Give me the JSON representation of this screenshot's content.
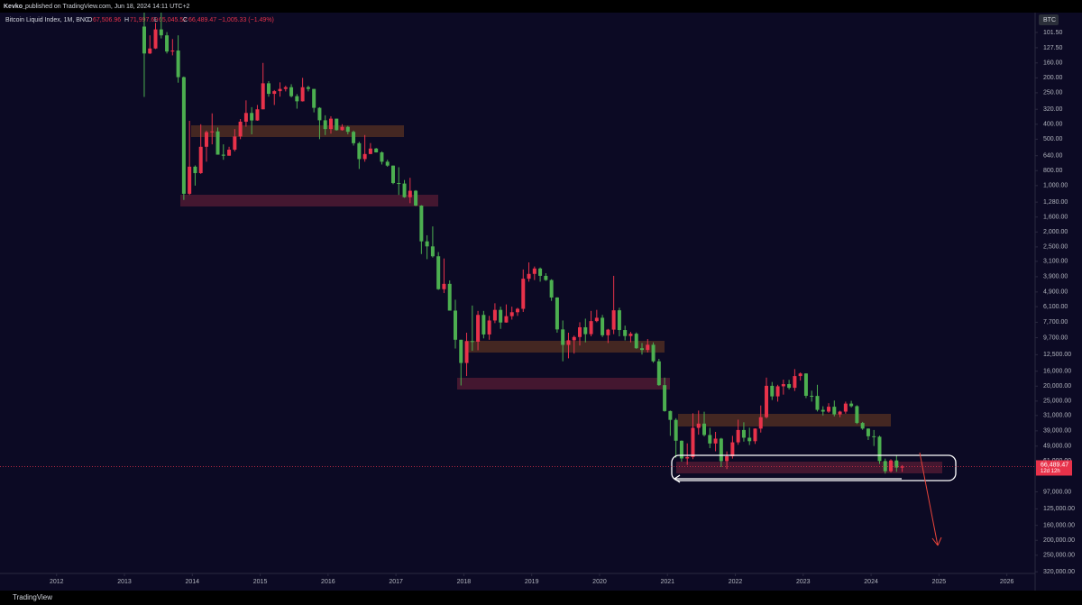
{
  "header": {
    "author": "Kevko_",
    "published": "published on TradingView.com, Jun 18, 2024 14:11 UTC+2"
  },
  "legend": {
    "o_label": "O",
    "o": "67,506.96",
    "h_label": "H",
    "h": "71,997.69",
    "l_label": "L",
    "l": "65,045.52",
    "c_label": "C",
    "c": "66,489.47",
    "change": "−1,005.33 (−1.49%)"
  },
  "symbol": "BTC",
  "price_tag": "66,489.47",
  "countdown": "12d 12h",
  "footer": "TradingView",
  "chart_data": {
    "type": "candlestick",
    "title": "Bitcoin Liquid Index, 1M, BNC",
    "log_scale": true,
    "inverted": true,
    "grid": false,
    "up_color": "#4caf50",
    "down_color": "#e8324a",
    "xlim": [
      "2011-03",
      "2026-06"
    ],
    "xticks": [
      2012,
      2013,
      2014,
      2015,
      2016,
      2017,
      2018,
      2019,
      2020,
      2021,
      2022,
      2023,
      2024,
      2025,
      2026
    ],
    "ylim": [
      75.5,
      407000
    ],
    "yticks": [
      {
        "value": 101.5,
        "label": "101.50"
      },
      {
        "value": 127.5,
        "label": "127.50"
      },
      {
        "value": 160,
        "label": "160.00"
      },
      {
        "value": 200,
        "label": "200.00"
      },
      {
        "value": 250,
        "label": "250.00"
      },
      {
        "value": 320,
        "label": "320.00"
      },
      {
        "value": 400,
        "label": "400.00"
      },
      {
        "value": 500,
        "label": "500.00"
      },
      {
        "value": 640,
        "label": "640.00"
      },
      {
        "value": 800,
        "label": "800.00"
      },
      {
        "value": 1000,
        "label": "1,000.00"
      },
      {
        "value": 1280,
        "label": "1,280.00"
      },
      {
        "value": 1600,
        "label": "1,600.00"
      },
      {
        "value": 2000,
        "label": "2,000.00"
      },
      {
        "value": 2500,
        "label": "2,500.00"
      },
      {
        "value": 3100,
        "label": "3,100.00"
      },
      {
        "value": 3900,
        "label": "3,900.00"
      },
      {
        "value": 4900,
        "label": "4,900.00"
      },
      {
        "value": 6100,
        "label": "6,100.00"
      },
      {
        "value": 7700,
        "label": "7,700.00"
      },
      {
        "value": 9700,
        "label": "9,700.00"
      },
      {
        "value": 12500,
        "label": "12,500.00"
      },
      {
        "value": 16000,
        "label": "16,000.00"
      },
      {
        "value": 20000,
        "label": "20,000.00"
      },
      {
        "value": 25000,
        "label": "25,000.00"
      },
      {
        "value": 31000,
        "label": "31,000.00"
      },
      {
        "value": 39000,
        "label": "39,000.00"
      },
      {
        "value": 49000,
        "label": "49,000.00"
      },
      {
        "value": 61000,
        "label": "61,000.00"
      },
      {
        "value": 97000,
        "label": "97,000.00"
      },
      {
        "value": 125000,
        "label": "125,000.00"
      },
      {
        "value": 160000,
        "label": "160,000.00"
      },
      {
        "value": 200000,
        "label": "200,000.00"
      },
      {
        "value": 250000,
        "label": "250,000.00"
      },
      {
        "value": 320000,
        "label": "320,000.00"
      }
    ],
    "x": [
      "2013-04",
      "2013-05",
      "2013-06",
      "2013-07",
      "2013-08",
      "2013-09",
      "2013-10",
      "2013-11",
      "2013-12",
      "2014-01",
      "2014-02",
      "2014-03",
      "2014-04",
      "2014-05",
      "2014-06",
      "2014-07",
      "2014-08",
      "2014-09",
      "2014-10",
      "2014-11",
      "2014-12",
      "2015-01",
      "2015-02",
      "2015-03",
      "2015-04",
      "2015-05",
      "2015-06",
      "2015-07",
      "2015-08",
      "2015-09",
      "2015-10",
      "2015-11",
      "2015-12",
      "2016-01",
      "2016-02",
      "2016-03",
      "2016-04",
      "2016-05",
      "2016-06",
      "2016-07",
      "2016-08",
      "2016-09",
      "2016-10",
      "2016-11",
      "2016-12",
      "2017-01",
      "2017-02",
      "2017-03",
      "2017-04",
      "2017-05",
      "2017-06",
      "2017-07",
      "2017-08",
      "2017-09",
      "2017-10",
      "2017-11",
      "2017-12",
      "2018-01",
      "2018-02",
      "2018-03",
      "2018-04",
      "2018-05",
      "2018-06",
      "2018-07",
      "2018-08",
      "2018-09",
      "2018-10",
      "2018-11",
      "2018-12",
      "2019-01",
      "2019-02",
      "2019-03",
      "2019-04",
      "2019-05",
      "2019-06",
      "2019-07",
      "2019-08",
      "2019-09",
      "2019-10",
      "2019-11",
      "2019-12",
      "2020-01",
      "2020-02",
      "2020-03",
      "2020-04",
      "2020-05",
      "2020-06",
      "2020-07",
      "2020-08",
      "2020-09",
      "2020-10",
      "2020-11",
      "2020-12",
      "2021-01",
      "2021-02",
      "2021-03",
      "2021-04",
      "2021-05",
      "2021-06",
      "2021-07",
      "2021-08",
      "2021-09",
      "2021-10",
      "2021-11",
      "2021-12",
      "2022-01",
      "2022-02",
      "2022-03",
      "2022-04",
      "2022-05",
      "2022-06",
      "2022-07",
      "2022-08",
      "2022-09",
      "2022-10",
      "2022-11",
      "2022-12",
      "2023-01",
      "2023-02",
      "2023-03",
      "2023-04",
      "2023-05",
      "2023-06",
      "2023-07",
      "2023-08",
      "2023-09",
      "2023-10",
      "2023-11",
      "2023-12",
      "2024-01",
      "2024-02",
      "2024-03",
      "2024-04",
      "2024-05",
      "2024-06"
    ],
    "candles": [
      [
        93,
        266,
        50,
        139
      ],
      [
        139,
        140,
        106,
        129
      ],
      [
        129,
        130,
        88,
        97
      ],
      [
        97,
        111,
        65,
        106
      ],
      [
        106,
        139,
        101,
        135
      ],
      [
        135,
        143,
        112,
        133
      ],
      [
        133,
        215,
        106,
        198
      ],
      [
        198,
        1240,
        196,
        1130
      ],
      [
        1130,
        1150,
        380,
        754
      ],
      [
        754,
        1000,
        740,
        830
      ],
      [
        830,
        840,
        400,
        560
      ],
      [
        560,
        700,
        440,
        450
      ],
      [
        450,
        540,
        340,
        445
      ],
      [
        445,
        630,
        420,
        630
      ],
      [
        630,
        680,
        540,
        640
      ],
      [
        640,
        640,
        560,
        585
      ],
      [
        585,
        600,
        430,
        480
      ],
      [
        480,
        500,
        370,
        385
      ],
      [
        385,
        415,
        280,
        338
      ],
      [
        338,
        465,
        310,
        378
      ],
      [
        378,
        380,
        300,
        320
      ],
      [
        320,
        320,
        160,
        217
      ],
      [
        217,
        265,
        210,
        254
      ],
      [
        254,
        300,
        240,
        244
      ],
      [
        244,
        265,
        214,
        236
      ],
      [
        236,
        245,
        225,
        230
      ],
      [
        230,
        268,
        220,
        263
      ],
      [
        263,
        317,
        255,
        284
      ],
      [
        284,
        285,
        200,
        230
      ],
      [
        230,
        245,
        225,
        236
      ],
      [
        236,
        335,
        236,
        313
      ],
      [
        313,
        500,
        310,
        377
      ],
      [
        377,
        470,
        350,
        430
      ],
      [
        430,
        460,
        355,
        368
      ],
      [
        368,
        440,
        368,
        437
      ],
      [
        437,
        440,
        400,
        416
      ],
      [
        416,
        465,
        410,
        448
      ],
      [
        448,
        550,
        440,
        531
      ],
      [
        531,
        780,
        520,
        673
      ],
      [
        673,
        700,
        470,
        624
      ],
      [
        624,
        625,
        530,
        575
      ],
      [
        575,
        610,
        570,
        609
      ],
      [
        609,
        730,
        600,
        700
      ],
      [
        700,
        755,
        680,
        742
      ],
      [
        742,
        980,
        740,
        963
      ],
      [
        963,
        1150,
        760,
        970
      ],
      [
        970,
        1200,
        920,
        1190
      ],
      [
        1190,
        1300,
        890,
        1080
      ],
      [
        1080,
        1360,
        1070,
        1348
      ],
      [
        1348,
        2780,
        1340,
        2300
      ],
      [
        2300,
        3000,
        2100,
        2480
      ],
      [
        2480,
        2930,
        1840,
        2875
      ],
      [
        2875,
        4750,
        2700,
        4700
      ],
      [
        4700,
        4980,
        2970,
        4340
      ],
      [
        4340,
        6470,
        4120,
        6470
      ],
      [
        6470,
        11400,
        5500,
        10000
      ],
      [
        10000,
        19800,
        10000,
        14150
      ],
      [
        14150,
        17200,
        9000,
        10200
      ],
      [
        10200,
        11800,
        6000,
        10300
      ],
      [
        10300,
        11700,
        6500,
        6900
      ],
      [
        6900,
        9800,
        6500,
        9240
      ],
      [
        9240,
        10000,
        7000,
        7500
      ],
      [
        7500,
        7800,
        5800,
        6400
      ],
      [
        6400,
        8500,
        6100,
        7730
      ],
      [
        7730,
        7750,
        5900,
        7030
      ],
      [
        7030,
        7400,
        6100,
        6630
      ],
      [
        6630,
        7000,
        6200,
        6300
      ],
      [
        6300,
        6600,
        3500,
        4020
      ],
      [
        4020,
        4200,
        3150,
        3740
      ],
      [
        3740,
        4100,
        3350,
        3450
      ],
      [
        3450,
        4200,
        3400,
        3850
      ],
      [
        3850,
        4150,
        3700,
        4100
      ],
      [
        4100,
        5600,
        4050,
        5320
      ],
      [
        5320,
        9000,
        5300,
        8570
      ],
      [
        8570,
        13800,
        7500,
        10800
      ],
      [
        10800,
        13200,
        9000,
        10080
      ],
      [
        10080,
        12300,
        9400,
        9600
      ],
      [
        9600,
        10900,
        7700,
        8300
      ],
      [
        8300,
        10400,
        7300,
        9200
      ],
      [
        9200,
        9500,
        6500,
        7570
      ],
      [
        7570,
        7700,
        6400,
        7200
      ],
      [
        7200,
        9600,
        6900,
        9350
      ],
      [
        9350,
        10500,
        8500,
        8600
      ],
      [
        8600,
        9200,
        3850,
        6440
      ],
      [
        6440,
        9500,
        6200,
        8650
      ],
      [
        8650,
        10100,
        8100,
        9460
      ],
      [
        9460,
        10400,
        8900,
        9140
      ],
      [
        9140,
        11450,
        8970,
        11350
      ],
      [
        11350,
        12480,
        10500,
        11650
      ],
      [
        11650,
        12100,
        9900,
        10780
      ],
      [
        10780,
        14100,
        10400,
        13800
      ],
      [
        13800,
        19900,
        13300,
        19700
      ],
      [
        19700,
        29300,
        17600,
        29000
      ],
      [
        29000,
        42000,
        28800,
        33100
      ],
      [
        33100,
        58300,
        32300,
        45200
      ],
      [
        45200,
        61800,
        45000,
        58900
      ],
      [
        58900,
        64900,
        47000,
        57700
      ],
      [
        57700,
        59500,
        30000,
        37300
      ],
      [
        37300,
        41300,
        28800,
        35000
      ],
      [
        35000,
        42400,
        29300,
        41500
      ],
      [
        41500,
        50500,
        37300,
        47100
      ],
      [
        47100,
        52900,
        39600,
        43800
      ],
      [
        43800,
        67000,
        43300,
        61300
      ],
      [
        61300,
        69000,
        53000,
        57000
      ],
      [
        57000,
        59000,
        42000,
        46300
      ],
      [
        46300,
        48000,
        33000,
        38500
      ],
      [
        38500,
        45800,
        34300,
        43200
      ],
      [
        43200,
        48200,
        37200,
        45500
      ],
      [
        45500,
        47400,
        37600,
        37700
      ],
      [
        37700,
        40000,
        26700,
        31800
      ],
      [
        31800,
        32400,
        17600,
        19900
      ],
      [
        19900,
        24600,
        18800,
        23300
      ],
      [
        23300,
        25200,
        19600,
        20050
      ],
      [
        20050,
        22700,
        18150,
        19400
      ],
      [
        19400,
        21000,
        18200,
        20500
      ],
      [
        20500,
        21500,
        15500,
        17200
      ],
      [
        17200,
        18400,
        16300,
        16550
      ],
      [
        16550,
        23900,
        16500,
        23100
      ],
      [
        23100,
        25200,
        21400,
        23150
      ],
      [
        23150,
        29200,
        19600,
        28500
      ],
      [
        28500,
        31000,
        27000,
        29250
      ],
      [
        29250,
        29800,
        25800,
        27200
      ],
      [
        27200,
        31400,
        24800,
        30500
      ],
      [
        30500,
        31800,
        28900,
        29250
      ],
      [
        29250,
        30200,
        25200,
        25950
      ],
      [
        25950,
        27500,
        24900,
        26970
      ],
      [
        26970,
        35200,
        26600,
        34650
      ],
      [
        34650,
        38400,
        34100,
        37700
      ],
      [
        37700,
        44700,
        37600,
        42280
      ],
      [
        42280,
        48900,
        38500,
        42580
      ],
      [
        42580,
        63900,
        41900,
        61200
      ],
      [
        61200,
        73800,
        59000,
        71300
      ],
      [
        71300,
        72700,
        59600,
        60700
      ],
      [
        60700,
        71900,
        56500,
        67500
      ],
      [
        67506.96,
        71997.69,
        65045.52,
        66489.47
      ]
    ]
  }
}
